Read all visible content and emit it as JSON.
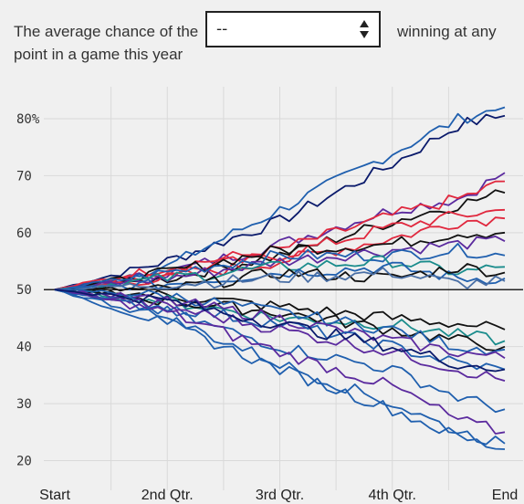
{
  "controls": {
    "label_left": "The average chance of the point in a game this year",
    "label_right": "winning at any",
    "select_value": "--",
    "select_icon": "up-down-arrows-icon"
  },
  "chart_data": {
    "type": "line",
    "title": "",
    "xlabel": "",
    "ylabel": "",
    "x_categories": [
      "Start",
      "2nd Qtr.",
      "3rd Qtr.",
      "4th Qtr.",
      "End"
    ],
    "ylim": [
      18,
      84
    ],
    "y_ticks": [
      {
        "value": 80,
        "label": "80%"
      },
      {
        "value": 70,
        "label": "70"
      },
      {
        "value": 60,
        "label": "60"
      },
      {
        "value": 50,
        "label": "50"
      },
      {
        "value": 40,
        "label": "40"
      },
      {
        "value": 30,
        "label": "30"
      },
      {
        "value": 20,
        "label": "20"
      }
    ],
    "reference_line": 50,
    "grid": true,
    "colors": {
      "navy": "#0a1a6b",
      "blue": "#1f5fae",
      "purple": "#5b2a9e",
      "red": "#e0283e",
      "black": "#111111",
      "teal": "#1a8c8c",
      "gray_blue": "#4a6fa5"
    },
    "series": [
      {
        "color": "#0a1a6b",
        "points": [
          [
            0,
            50
          ],
          [
            0.25,
            55
          ],
          [
            0.5,
            62
          ],
          [
            0.75,
            72
          ],
          [
            0.9,
            79
          ],
          [
            1,
            80.5
          ]
        ]
      },
      {
        "color": "#1f5fae",
        "points": [
          [
            0,
            50
          ],
          [
            0.25,
            54
          ],
          [
            0.5,
            64
          ],
          [
            0.75,
            74
          ],
          [
            0.9,
            80
          ],
          [
            1,
            82
          ]
        ]
      },
      {
        "color": "#5b2a9e",
        "points": [
          [
            0,
            50
          ],
          [
            0.25,
            53
          ],
          [
            0.5,
            58
          ],
          [
            0.75,
            64
          ],
          [
            0.9,
            66
          ],
          [
            1,
            70.5
          ]
        ]
      },
      {
        "color": "#e0283e",
        "points": [
          [
            0,
            50
          ],
          [
            0.25,
            54
          ],
          [
            0.5,
            57
          ],
          [
            0.75,
            63
          ],
          [
            0.9,
            66
          ],
          [
            1,
            69
          ]
        ]
      },
      {
        "color": "#111111",
        "points": [
          [
            0,
            50
          ],
          [
            0.25,
            52
          ],
          [
            0.5,
            56
          ],
          [
            0.75,
            62
          ],
          [
            0.9,
            65
          ],
          [
            1,
            67
          ]
        ]
      },
      {
        "color": "#e0283e",
        "points": [
          [
            0,
            50
          ],
          [
            0.25,
            53
          ],
          [
            0.5,
            56
          ],
          [
            0.75,
            61
          ],
          [
            0.9,
            63
          ],
          [
            1,
            64
          ]
        ]
      },
      {
        "color": "#e0283e",
        "points": [
          [
            0,
            50
          ],
          [
            0.25,
            52
          ],
          [
            0.5,
            55
          ],
          [
            0.75,
            59
          ],
          [
            0.9,
            62
          ],
          [
            1,
            62.5
          ]
        ]
      },
      {
        "color": "#111111",
        "points": [
          [
            0,
            50
          ],
          [
            0.25,
            53
          ],
          [
            0.5,
            57
          ],
          [
            0.75,
            58
          ],
          [
            0.9,
            60
          ],
          [
            1,
            60
          ]
        ]
      },
      {
        "color": "#5b2a9e",
        "points": [
          [
            0,
            50
          ],
          [
            0.25,
            52
          ],
          [
            0.5,
            55
          ],
          [
            0.75,
            57
          ],
          [
            0.9,
            58
          ],
          [
            1,
            58.5
          ]
        ]
      },
      {
        "color": "#1f5fae",
        "points": [
          [
            0,
            50
          ],
          [
            0.25,
            53
          ],
          [
            0.5,
            56
          ],
          [
            0.75,
            56
          ],
          [
            0.9,
            57
          ],
          [
            1,
            56
          ]
        ]
      },
      {
        "color": "#1a8c8c",
        "points": [
          [
            0,
            50
          ],
          [
            0.25,
            52
          ],
          [
            0.5,
            54
          ],
          [
            0.75,
            55
          ],
          [
            0.9,
            53
          ],
          [
            1,
            54
          ]
        ]
      },
      {
        "color": "#1f5fae",
        "points": [
          [
            0,
            50
          ],
          [
            0.25,
            51
          ],
          [
            0.5,
            53
          ],
          [
            0.75,
            54
          ],
          [
            0.9,
            52
          ],
          [
            1,
            52
          ]
        ]
      },
      {
        "color": "#111111",
        "points": [
          [
            0,
            50
          ],
          [
            0.25,
            50
          ],
          [
            0.5,
            53
          ],
          [
            0.75,
            52
          ],
          [
            0.9,
            54
          ],
          [
            1,
            53
          ]
        ]
      },
      {
        "color": "#4a6fa5",
        "points": [
          [
            0,
            50
          ],
          [
            0.25,
            51
          ],
          [
            0.5,
            52
          ],
          [
            0.75,
            53
          ],
          [
            0.9,
            51
          ],
          [
            1,
            51.5
          ]
        ]
      },
      {
        "color": "#111111",
        "points": [
          [
            0,
            50
          ],
          [
            0.25,
            49
          ],
          [
            0.5,
            47
          ],
          [
            0.75,
            45
          ],
          [
            0.9,
            44
          ],
          [
            1,
            43
          ]
        ]
      },
      {
        "color": "#1a8c8c",
        "points": [
          [
            0,
            50
          ],
          [
            0.25,
            48
          ],
          [
            0.5,
            45
          ],
          [
            0.75,
            44
          ],
          [
            0.9,
            42
          ],
          [
            1,
            41
          ]
        ]
      },
      {
        "color": "#111111",
        "points": [
          [
            0,
            50
          ],
          [
            0.25,
            48
          ],
          [
            0.5,
            46
          ],
          [
            0.75,
            43
          ],
          [
            0.9,
            41
          ],
          [
            1,
            40
          ]
        ]
      },
      {
        "color": "#1f5fae",
        "points": [
          [
            0,
            50
          ],
          [
            0.25,
            49
          ],
          [
            0.5,
            46
          ],
          [
            0.75,
            43
          ],
          [
            0.9,
            40
          ],
          [
            1,
            39.5
          ]
        ]
      },
      {
        "color": "#5b2a9e",
        "points": [
          [
            0,
            50
          ],
          [
            0.25,
            48
          ],
          [
            0.5,
            45
          ],
          [
            0.75,
            41
          ],
          [
            0.9,
            39
          ],
          [
            1,
            38
          ]
        ]
      },
      {
        "color": "#1f5fae",
        "points": [
          [
            0,
            50
          ],
          [
            0.25,
            47
          ],
          [
            0.5,
            44
          ],
          [
            0.75,
            40
          ],
          [
            0.9,
            37
          ],
          [
            1,
            36
          ]
        ]
      },
      {
        "color": "#5b2a9e",
        "points": [
          [
            0,
            50
          ],
          [
            0.25,
            47
          ],
          [
            0.5,
            43
          ],
          [
            0.75,
            39
          ],
          [
            0.9,
            36
          ],
          [
            1,
            34
          ]
        ]
      },
      {
        "color": "#1f5fae",
        "points": [
          [
            0,
            50
          ],
          [
            0.25,
            46
          ],
          [
            0.5,
            40
          ],
          [
            0.75,
            36
          ],
          [
            0.9,
            31
          ],
          [
            1,
            29
          ]
        ]
      },
      {
        "color": "#5b2a9e",
        "points": [
          [
            0,
            50
          ],
          [
            0.25,
            46
          ],
          [
            0.5,
            39
          ],
          [
            0.75,
            33
          ],
          [
            0.9,
            27
          ],
          [
            1,
            25
          ]
        ]
      },
      {
        "color": "#1f5fae",
        "points": [
          [
            0,
            50
          ],
          [
            0.25,
            45
          ],
          [
            0.5,
            37
          ],
          [
            0.75,
            30
          ],
          [
            0.9,
            25
          ],
          [
            1,
            23
          ]
        ]
      },
      {
        "color": "#1f5fae",
        "points": [
          [
            0,
            50
          ],
          [
            0.25,
            44
          ],
          [
            0.5,
            36
          ],
          [
            0.75,
            29
          ],
          [
            0.9,
            24
          ],
          [
            1,
            22
          ]
        ]
      },
      {
        "color": "#0a1a6b",
        "points": [
          [
            0,
            50
          ],
          [
            0.25,
            48
          ],
          [
            0.5,
            44
          ],
          [
            0.75,
            40
          ],
          [
            0.9,
            37
          ],
          [
            1,
            36
          ]
        ]
      }
    ]
  }
}
